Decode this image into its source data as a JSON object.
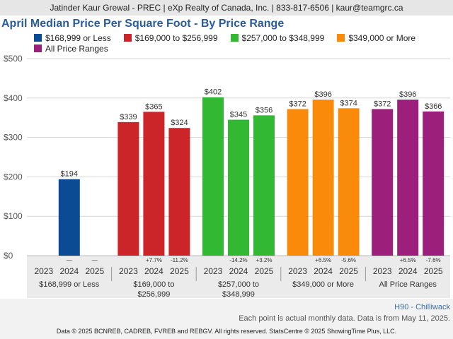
{
  "header": {
    "contact_line": "Jatinder Kaur Grewal - PREC | eXp Realty of Canada, Inc. | 833-817-6506 | kaur@teamgrc.ca"
  },
  "legend": {
    "items": [
      {
        "label": "$168,999 or Less",
        "color": "#0b4a94"
      },
      {
        "label": "$169,000 to $256,999",
        "color": "#cc2529"
      },
      {
        "label": "$257,000 to $348,999",
        "color": "#33b833"
      },
      {
        "label": "$349,000 or More",
        "color": "#f98a0a"
      },
      {
        "label": "All Price Ranges",
        "color": "#9c1f7c"
      }
    ]
  },
  "footer": {
    "region": "H90 - Chilliwack",
    "note": "Each point is actual monthly data. Data is from May 11, 2025.",
    "copyright": "Data © 2025 BCNREB, CADREB, FVREB and REBGV. All rights reserved. StatsCentre © 2025 ShowingTime Plus, LLC."
  },
  "chart_data": {
    "type": "bar",
    "title": "April Median Price Per Square Foot - By Price Range",
    "ylim": [
      0,
      500
    ],
    "y_ticks": [
      "$0",
      "$100",
      "$200",
      "$300",
      "$400",
      "$500"
    ],
    "grid": true,
    "groups": [
      {
        "name": "$168,999 or Less",
        "label_lines": [
          "$168,999 or Less"
        ],
        "color": "#0b4a94",
        "years": [
          "2023",
          "2024",
          "2025"
        ],
        "values": [
          null,
          194,
          null
        ],
        "value_labels": [
          "",
          "$194",
          ""
        ],
        "changes": [
          "",
          "—",
          "—"
        ]
      },
      {
        "name": "$169,000 to $256,999",
        "label_lines": [
          "$169,000 to",
          "$256,999"
        ],
        "color": "#cc2529",
        "years": [
          "2023",
          "2024",
          "2025"
        ],
        "values": [
          339,
          365,
          324
        ],
        "value_labels": [
          "$339",
          "$365",
          "$324"
        ],
        "changes": [
          "",
          "+7.7%",
          "-11.2%"
        ]
      },
      {
        "name": "$257,000 to $348,999",
        "label_lines": [
          "$257,000 to",
          "$348,999"
        ],
        "color": "#33b833",
        "years": [
          "2023",
          "2024",
          "2025"
        ],
        "values": [
          402,
          345,
          356
        ],
        "value_labels": [
          "$402",
          "$345",
          "$356"
        ],
        "changes": [
          "",
          "-14.2%",
          "+3.2%"
        ]
      },
      {
        "name": "$349,000 or More",
        "label_lines": [
          "$349,000 or More"
        ],
        "color": "#f98a0a",
        "years": [
          "2023",
          "2024",
          "2025"
        ],
        "values": [
          372,
          396,
          374
        ],
        "value_labels": [
          "$372",
          "$396",
          "$374"
        ],
        "changes": [
          "",
          "+6.5%",
          "-5.6%"
        ]
      },
      {
        "name": "All Price Ranges",
        "label_lines": [
          "All Price Ranges"
        ],
        "color": "#9c1f7c",
        "years": [
          "2023",
          "2024",
          "2025"
        ],
        "values": [
          372,
          396,
          366
        ],
        "value_labels": [
          "$372",
          "$396",
          "$366"
        ],
        "changes": [
          "",
          "+6.5%",
          "-7.6%"
        ]
      }
    ]
  }
}
